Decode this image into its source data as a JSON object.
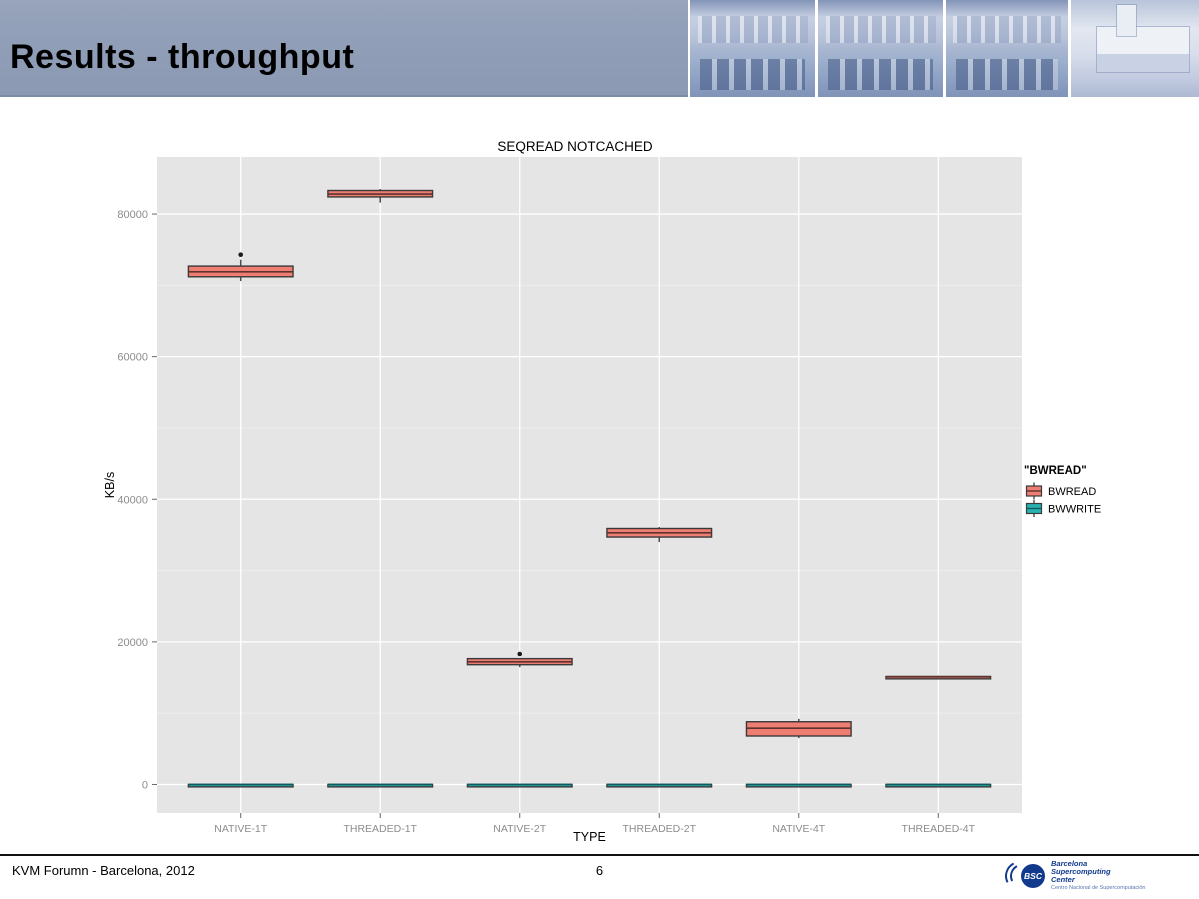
{
  "slide": {
    "title": "Results - throughput",
    "footer_left": "KVM Forumn - Barcelona, 2012",
    "page_number": "6",
    "header_photos": [
      "bsc-chapel-interior-photo",
      "bsc-machine-room-photo",
      "bsc-chapel-gallery-photo",
      "bsc-chapel-exterior-photo"
    ],
    "logo": {
      "acronym": "BSC",
      "name_line1": "Barcelona",
      "name_line2": "Supercomputing",
      "name_line3": "Center",
      "subtitle": "Centro Nacional de Supercomputación"
    }
  },
  "colors": {
    "header_band": "#8F9DB6",
    "panel_bg": "#E5E5E5",
    "grid_major": "#FFFFFF",
    "grid_minor": "#EFEFEF",
    "box_stroke": "#3A3A3A",
    "whisker": "#4D4D4D",
    "outlier": "#1A1A1A",
    "axis_text": "#8C8C8C",
    "tick": "#666666",
    "bsc_blue": "#123A8C"
  },
  "chart_data": {
    "type": "boxplot",
    "title": "SEQREAD NOTCACHED",
    "xlabel": "TYPE",
    "ylabel": "KB/s",
    "categories": [
      "NATIVE-1T",
      "THREADED-1T",
      "NATIVE-2T",
      "THREADED-2T",
      "NATIVE-4T",
      "THREADED-4T"
    ],
    "yticks": [
      0,
      20000,
      40000,
      60000,
      80000
    ],
    "y_minor_ticks": [
      10000,
      30000,
      50000,
      70000
    ],
    "ylim": [
      -4000,
      88000
    ],
    "grid": true,
    "legend": {
      "title": "\"BWREAD\"",
      "position": "right",
      "entries": [
        "BWREAD",
        "BWWRITE"
      ]
    },
    "series": [
      {
        "name": "BWREAD",
        "color": "#EE7D72",
        "median_color": "#5E332E",
        "boxes": [
          {
            "category": "NATIVE-1T",
            "low": 70600,
            "q1": 71200,
            "median": 71900,
            "q3": 72700,
            "high": 73600,
            "outliers": [
              74300
            ]
          },
          {
            "category": "THREADED-1T",
            "low": 81600,
            "q1": 82400,
            "median": 82800,
            "q3": 83300,
            "high": 83500,
            "outliers": []
          },
          {
            "category": "NATIVE-2T",
            "low": 16450,
            "q1": 16800,
            "median": 17200,
            "q3": 17650,
            "high": 17700,
            "outliers": [
              18300
            ]
          },
          {
            "category": "THREADED-2T",
            "low": 34000,
            "q1": 34700,
            "median": 35300,
            "q3": 35900,
            "high": 36100,
            "outliers": []
          },
          {
            "category": "NATIVE-4T",
            "low": 6500,
            "q1": 6800,
            "median": 7900,
            "q3": 8800,
            "high": 9200,
            "outliers": []
          },
          {
            "category": "THREADED-4T",
            "low": 14950,
            "q1": 15050,
            "median": 15100,
            "q3": 15150,
            "high": 15250,
            "outliers": []
          }
        ]
      },
      {
        "name": "BWWRITE",
        "color": "#27B2B0",
        "median_color": "#0E5A5C",
        "boxes": [
          {
            "category": "NATIVE-1T",
            "low": 0,
            "q1": 0,
            "median": 0,
            "q3": 0,
            "high": 0,
            "outliers": []
          },
          {
            "category": "THREADED-1T",
            "low": 0,
            "q1": 0,
            "median": 0,
            "q3": 0,
            "high": 0,
            "outliers": []
          },
          {
            "category": "NATIVE-2T",
            "low": 0,
            "q1": 0,
            "median": 0,
            "q3": 0,
            "high": 0,
            "outliers": []
          },
          {
            "category": "THREADED-2T",
            "low": 0,
            "q1": 0,
            "median": 0,
            "q3": 0,
            "high": 0,
            "outliers": []
          },
          {
            "category": "NATIVE-4T",
            "low": 0,
            "q1": 0,
            "median": 0,
            "q3": 0,
            "high": 0,
            "outliers": []
          },
          {
            "category": "THREADED-4T",
            "low": 0,
            "q1": 0,
            "median": 0,
            "q3": 0,
            "high": 0,
            "outliers": []
          }
        ]
      }
    ]
  }
}
